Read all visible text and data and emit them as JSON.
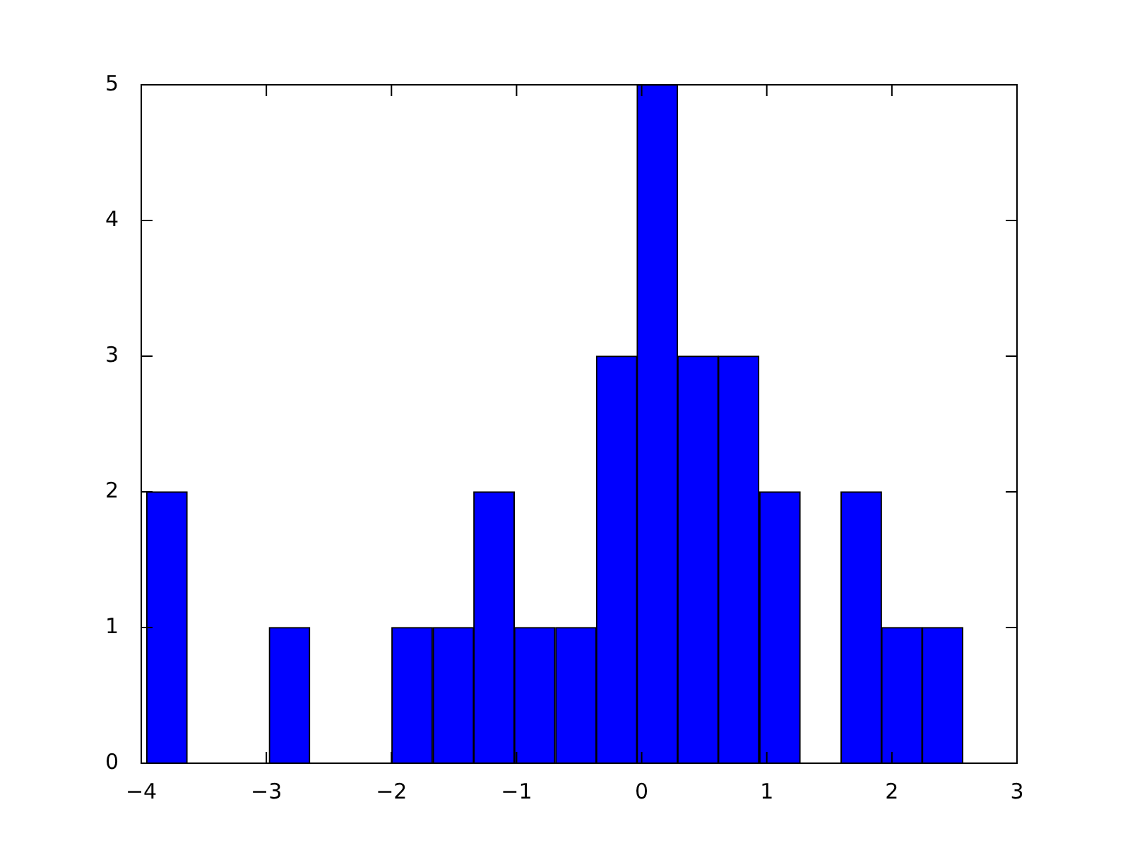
{
  "chart_data": {
    "type": "histogram",
    "bins": [
      -3.96,
      -3.63,
      -3.3,
      -2.98,
      -2.65,
      -2.32,
      -2.0,
      -1.67,
      -1.34,
      -1.02,
      -0.69,
      -0.36,
      -0.04,
      0.29,
      0.61,
      0.94,
      1.27,
      1.59,
      1.92,
      2.24,
      2.57
    ],
    "values": [
      2,
      0,
      0,
      1,
      0,
      0,
      1,
      1,
      2,
      1,
      1,
      3,
      5,
      3,
      3,
      2,
      0,
      2,
      1,
      1
    ],
    "color": "#0000ff",
    "xlim": [
      -4,
      3
    ],
    "xticks": [
      -4,
      -3,
      -2,
      -1,
      0,
      1,
      2,
      3
    ],
    "ylim": [
      0,
      5
    ],
    "yticks": [
      0,
      1,
      2,
      3,
      4,
      5
    ]
  }
}
